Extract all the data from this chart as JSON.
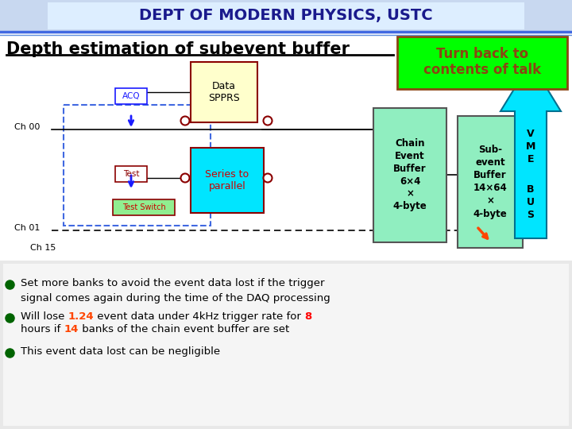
{
  "title_header": "DEPT OF MODERN PHYSICS, USTC",
  "slide_title": "Depth estimation of subevent buffer",
  "header_bg": "#c8d8f0",
  "header_text_color": "#1a1a8c",
  "slide_bg": "#ffffff",
  "green_box_text_line1": "Turn back to",
  "green_box_text_line2": "contents of talk",
  "green_box_bg": "#00ff00",
  "green_box_text_color": "#8b4513",
  "bullet_color": "#006400",
  "chain_box_bg": "#90eec0",
  "subevent_box_bg": "#90eec0",
  "data_spprs_bg": "#ffffcc",
  "series_parallel_bg": "#00e5ff",
  "acq_box_bg": "#ffffff",
  "test_box_bg": "#ffffff",
  "test_switch_bg": "#90ee90",
  "vme_arrow_color": "#00e5ff",
  "highlight_color1": "#ff4500",
  "highlight_color2": "#ff0000"
}
